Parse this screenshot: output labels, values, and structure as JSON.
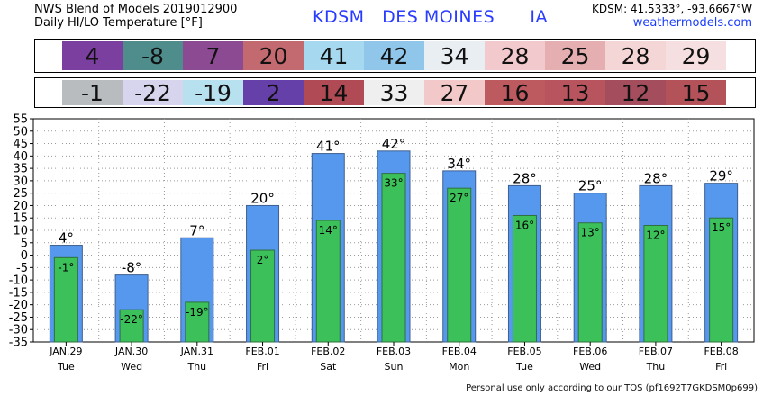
{
  "header": {
    "line1": "NWS Blend of Models 2019012900",
    "line2": "Daily HI/LO Temperature [°F]",
    "station_id": "KDSM",
    "station_name": "DES MOINES",
    "state": "IA",
    "coords": "KDSM: 41.5333°, -93.6667°W",
    "site": "weathermodels.com"
  },
  "hi_strip": {
    "values": [
      "4",
      "-8",
      "7",
      "20",
      "41",
      "42",
      "34",
      "28",
      "25",
      "28",
      "29"
    ],
    "colors": [
      "#7b3fa0",
      "#4f8c8c",
      "#8b4a92",
      "#c26a6f",
      "#a6d8ef",
      "#8fc6ea",
      "#e8eef1",
      "#f2c9cc",
      "#e5aeb1",
      "#f4d6d6",
      "#f6dfe0"
    ]
  },
  "lo_strip": {
    "values": [
      "-1",
      "-22",
      "-19",
      "2",
      "14",
      "33",
      "27",
      "16",
      "13",
      "12",
      "15"
    ],
    "colors": [
      "#b9bcbe",
      "#d7d5ee",
      "#b8e1ef",
      "#6540a8",
      "#b04a55",
      "#efefef",
      "#f2c8c8",
      "#bd5a60",
      "#b8545d",
      "#a44d5c",
      "#b4525a"
    ]
  },
  "chart_data": {
    "type": "bar",
    "categories": [
      "JAN.29",
      "JAN.30",
      "JAN.31",
      "FEB.01",
      "FEB.02",
      "FEB.03",
      "FEB.04",
      "FEB.05",
      "FEB.06",
      "FEB.07",
      "FEB.08"
    ],
    "days": [
      "Tue",
      "Wed",
      "Thu",
      "Fri",
      "Sat",
      "Sun",
      "Mon",
      "Tue",
      "Wed",
      "Thu",
      "Fri"
    ],
    "series": [
      {
        "name": "",
        "values": [
          4,
          -8,
          7,
          20,
          41,
          42,
          34,
          28,
          25,
          28,
          29
        ],
        "color": "#5598ee",
        "labels": [
          "4°",
          "-8°",
          "7°",
          "20°",
          "41°",
          "42°",
          "34°",
          "28°",
          "25°",
          "28°",
          "29°"
        ]
      },
      {
        "name": "",
        "values": [
          -1,
          -22,
          -19,
          2,
          14,
          33,
          27,
          16,
          13,
          12,
          15
        ],
        "color": "#3cc15a",
        "labels": [
          "-1°",
          "-22°",
          "-19°",
          "2°",
          "14°",
          "33°",
          "27°",
          "16°",
          "13°",
          "12°",
          "15°"
        ]
      }
    ],
    "ylim": [
      -35,
      55
    ],
    "yticks": [
      "-35",
      "-30",
      "-25",
      "-20",
      "-15",
      "-10",
      "-5",
      "0",
      "5",
      "10",
      "15",
      "20",
      "25",
      "30",
      "35",
      "40",
      "45",
      "50",
      "55"
    ],
    "grid": true,
    "xlabel": "",
    "ylabel": ""
  },
  "footer": "Personal use only according to our TOS (pf1692T7GKDSM0p699)"
}
